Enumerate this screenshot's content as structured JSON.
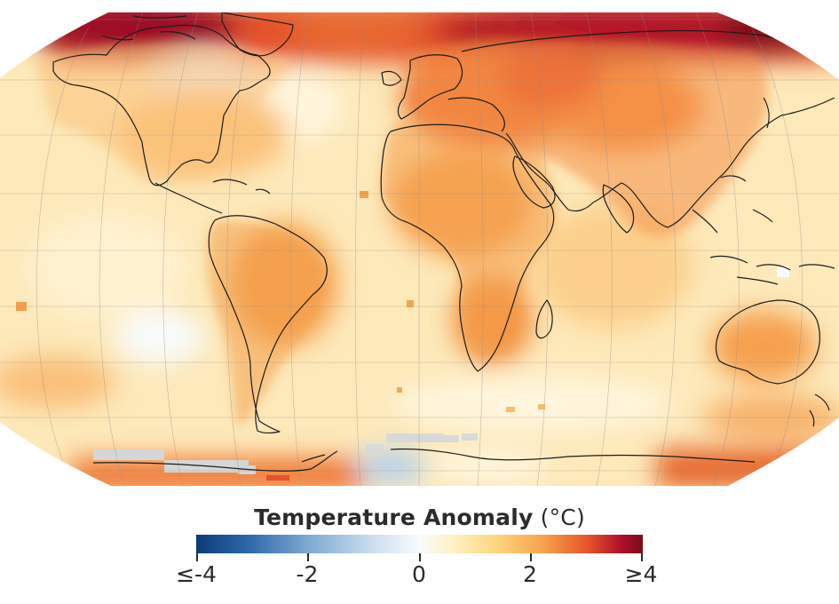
{
  "map": {
    "projection": "Robinson",
    "palette": {
      "ocean_base": "#fde9ba",
      "land_base": "#fbc880",
      "warm": "#f6a34f",
      "hot": "#e4512a",
      "very_hot": "#b41228",
      "extreme": "#780a1e",
      "cool": "#eef4fa",
      "cold": "#b9d3ea",
      "no_data": "#d6d6d6",
      "coastline": "#1c1c1c",
      "graticule": "#8c8c8c"
    }
  },
  "legend": {
    "title_bold": "Temperature Anomaly",
    "title_unit": "(°C)",
    "scale_min": -4,
    "scale_max": 4,
    "ticks": [
      {
        "value": -4,
        "label": "≤-4"
      },
      {
        "value": -2,
        "label": "-2"
      },
      {
        "value": 0,
        "label": "0"
      },
      {
        "value": 2,
        "label": "2"
      },
      {
        "value": 4,
        "label": "≥4"
      }
    ]
  }
}
